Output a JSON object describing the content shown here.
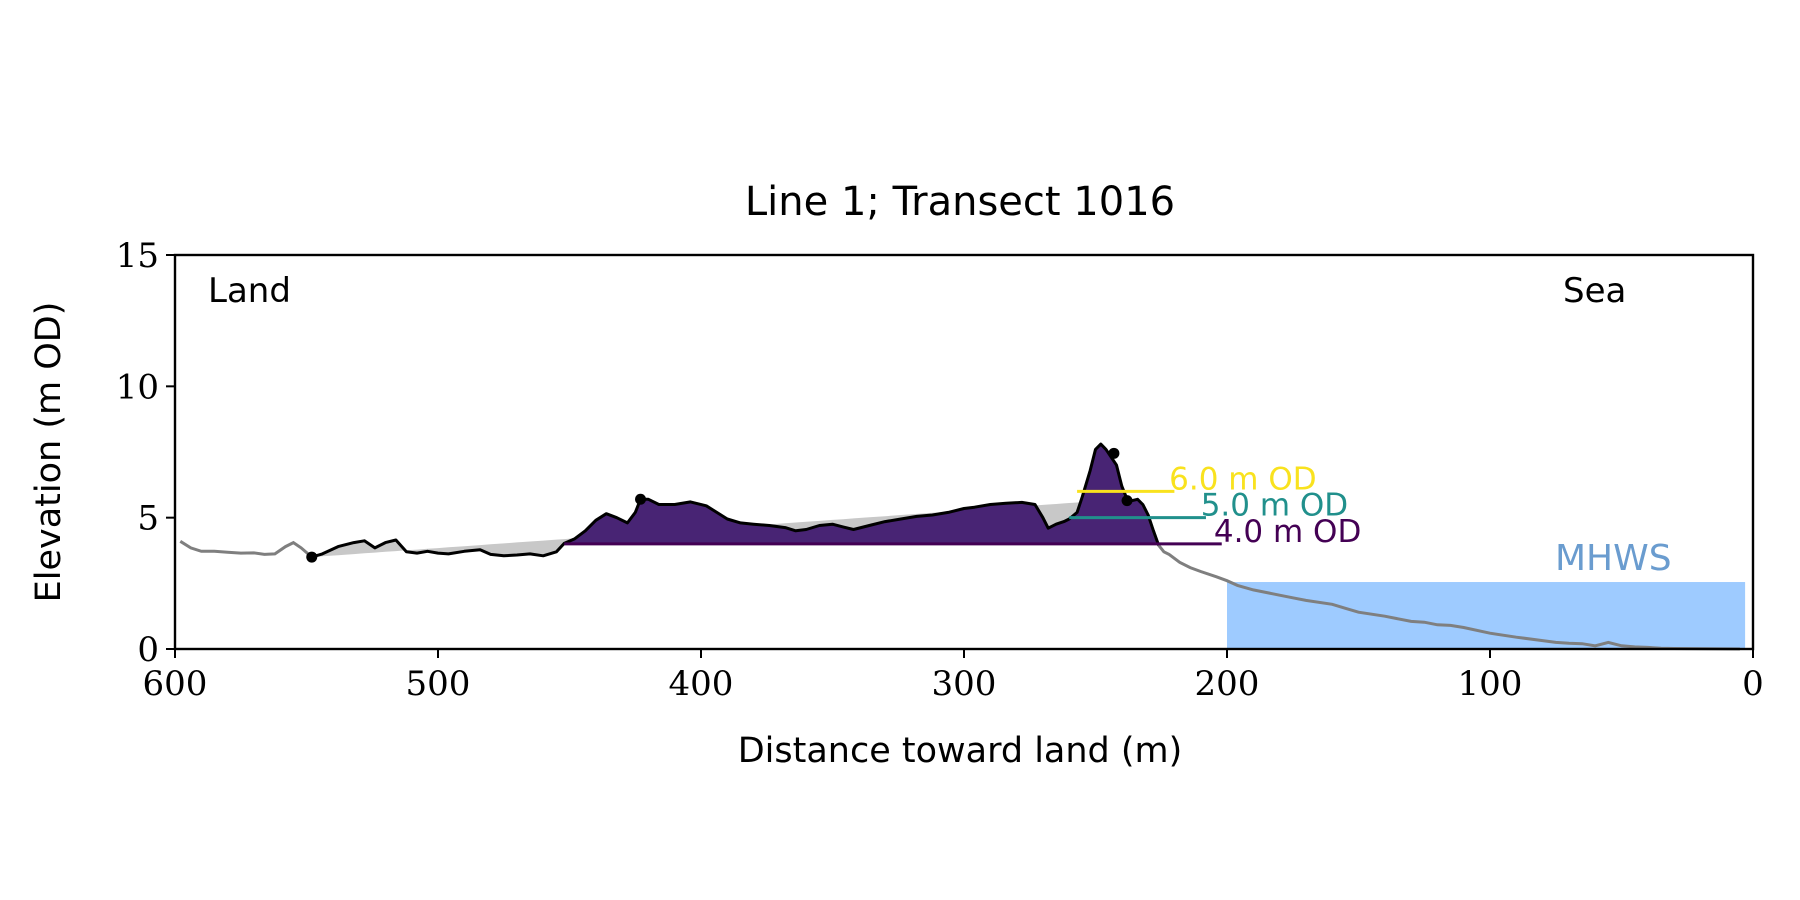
{
  "chart_data": {
    "type": "area",
    "title": "Line 1; Transect 1016",
    "xlabel": "Distance toward land (m)",
    "ylabel": "Elevation (m OD)",
    "xlim": [
      600,
      0
    ],
    "ylim": [
      0,
      15
    ],
    "x_ticks": [
      600,
      500,
      400,
      300,
      200,
      100,
      0
    ],
    "y_ticks": [
      0,
      5,
      10,
      15
    ],
    "grid": false,
    "annotations": {
      "land": "Land",
      "sea": "Sea",
      "mhws": "MHWS"
    },
    "mhws": {
      "elevation": 2.55,
      "x_start": 200,
      "x_end": 3,
      "color": "#9ecbff",
      "label_color": "#6a9ccf"
    },
    "regression_fill": {
      "color": "#c8c8c8",
      "from": [
        548,
        3.5
      ],
      "to": [
        240,
        5.7
      ]
    },
    "full_profile": {
      "color": "#7f7f7f",
      "points": [
        [
          598,
          4.1
        ],
        [
          594,
          3.85
        ],
        [
          590,
          3.72
        ],
        [
          585,
          3.72
        ],
        [
          580,
          3.68
        ],
        [
          575,
          3.65
        ],
        [
          570,
          3.66
        ],
        [
          566,
          3.6
        ],
        [
          562,
          3.62
        ],
        [
          558,
          3.9
        ],
        [
          555,
          4.05
        ],
        [
          552,
          3.85
        ],
        [
          548,
          3.5
        ],
        [
          200,
          2.6
        ],
        [
          196,
          2.42
        ],
        [
          190,
          2.25
        ],
        [
          180,
          2.05
        ],
        [
          175,
          1.95
        ],
        [
          170,
          1.85
        ],
        [
          160,
          1.7
        ],
        [
          155,
          1.55
        ],
        [
          150,
          1.4
        ],
        [
          140,
          1.25
        ],
        [
          130,
          1.05
        ],
        [
          125,
          1.02
        ],
        [
          120,
          0.92
        ],
        [
          115,
          0.9
        ],
        [
          110,
          0.82
        ],
        [
          100,
          0.6
        ],
        [
          90,
          0.45
        ],
        [
          80,
          0.32
        ],
        [
          75,
          0.25
        ],
        [
          70,
          0.22
        ],
        [
          65,
          0.2
        ],
        [
          60,
          0.12
        ],
        [
          55,
          0.25
        ],
        [
          50,
          0.12
        ],
        [
          45,
          0.08
        ],
        [
          40,
          0.06
        ],
        [
          35,
          0.03
        ],
        [
          30,
          0.02
        ],
        [
          5,
          0.0
        ]
      ]
    },
    "dune_profile": {
      "color": "#000000",
      "points": [
        [
          548,
          3.5
        ],
        [
          544,
          3.62
        ],
        [
          538,
          3.9
        ],
        [
          532,
          4.05
        ],
        [
          528,
          4.12
        ],
        [
          524,
          3.85
        ],
        [
          520,
          4.05
        ],
        [
          516,
          4.15
        ],
        [
          512,
          3.7
        ],
        [
          508,
          3.65
        ],
        [
          504,
          3.72
        ],
        [
          500,
          3.65
        ],
        [
          496,
          3.62
        ],
        [
          490,
          3.72
        ],
        [
          484,
          3.78
        ],
        [
          480,
          3.6
        ],
        [
          475,
          3.55
        ],
        [
          470,
          3.58
        ],
        [
          465,
          3.62
        ],
        [
          460,
          3.55
        ],
        [
          455,
          3.7
        ],
        [
          452,
          4.02
        ],
        [
          448,
          4.2
        ],
        [
          444,
          4.5
        ],
        [
          440,
          4.9
        ],
        [
          436,
          5.15
        ],
        [
          432,
          5.0
        ],
        [
          428,
          4.8
        ],
        [
          425,
          5.2
        ],
        [
          423,
          5.7
        ],
        [
          420,
          5.7
        ],
        [
          416,
          5.5
        ],
        [
          410,
          5.5
        ],
        [
          404,
          5.6
        ],
        [
          398,
          5.45
        ],
        [
          394,
          5.2
        ],
        [
          390,
          4.95
        ],
        [
          385,
          4.8
        ],
        [
          380,
          4.75
        ],
        [
          374,
          4.7
        ],
        [
          368,
          4.62
        ],
        [
          364,
          4.5
        ],
        [
          360,
          4.55
        ],
        [
          355,
          4.7
        ],
        [
          350,
          4.75
        ],
        [
          346,
          4.65
        ],
        [
          342,
          4.55
        ],
        [
          336,
          4.7
        ],
        [
          330,
          4.85
        ],
        [
          324,
          4.95
        ],
        [
          318,
          5.05
        ],
        [
          312,
          5.1
        ],
        [
          306,
          5.2
        ],
        [
          300,
          5.35
        ],
        [
          296,
          5.4
        ],
        [
          290,
          5.5
        ],
        [
          284,
          5.55
        ],
        [
          278,
          5.58
        ],
        [
          273,
          5.5
        ],
        [
          270,
          5.0
        ],
        [
          268,
          4.6
        ],
        [
          265,
          4.75
        ],
        [
          262,
          4.85
        ],
        [
          260,
          4.95
        ],
        [
          257,
          5.2
        ],
        [
          255,
          5.8
        ],
        [
          252,
          6.8
        ],
        [
          250,
          7.6
        ],
        [
          248,
          7.8
        ],
        [
          246,
          7.6
        ],
        [
          244,
          7.3
        ],
        [
          242,
          7.0
        ],
        [
          240,
          6.2
        ],
        [
          238,
          5.7
        ],
        [
          236,
          5.65
        ],
        [
          234,
          5.7
        ],
        [
          232,
          5.5
        ],
        [
          230,
          5.1
        ],
        [
          228,
          4.5
        ],
        [
          226,
          3.95
        ],
        [
          224,
          3.7
        ],
        [
          222,
          3.6
        ],
        [
          218,
          3.3
        ],
        [
          214,
          3.1
        ],
        [
          210,
          2.95
        ],
        [
          204,
          2.75
        ],
        [
          200,
          2.6
        ]
      ]
    },
    "key_points": [
      [
        548,
        3.5
      ],
      [
        423,
        5.7
      ],
      [
        243,
        7.45
      ],
      [
        238,
        5.65
      ]
    ],
    "series": [
      {
        "name": "6.0 m OD",
        "elevation": 6.0,
        "color": "#f9e21e",
        "fill": "#fde725",
        "x_range": [
          257,
          240
        ],
        "label_x": 222,
        "marker_end": 220
      },
      {
        "name": "5.0 m OD",
        "elevation": 5.0,
        "color": "#21908c",
        "fill": "#23a083",
        "x_range": [
          260,
          235
        ],
        "label_x": 210,
        "marker_end": 208
      },
      {
        "name": "4.0 m OD",
        "elevation": 4.0,
        "color": "#440154",
        "fill": "#482474",
        "x_range": [
          452,
          226
        ],
        "label_x": 205,
        "marker_end": 202
      }
    ]
  }
}
